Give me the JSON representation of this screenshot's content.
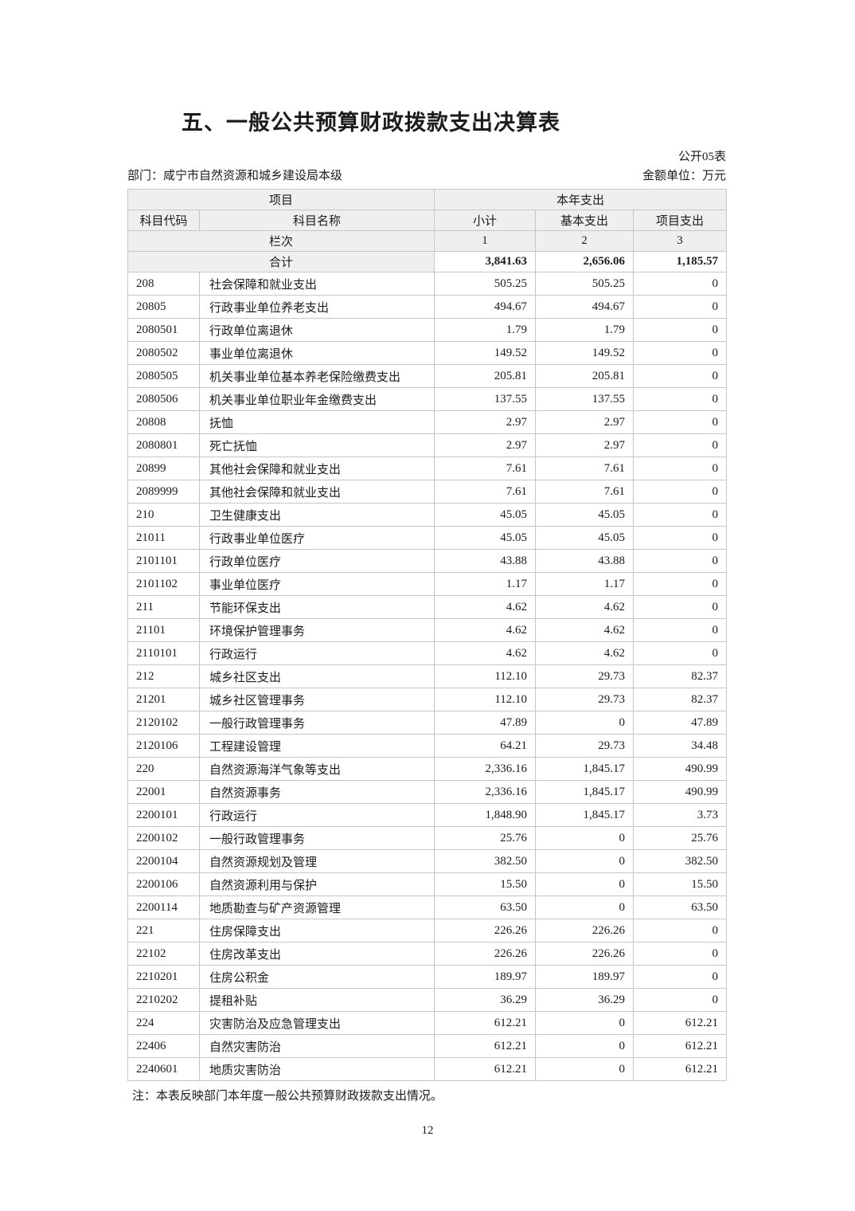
{
  "page": {
    "title": "五、一般公共预算财政拨款支出决算表",
    "form_code": "公开05表",
    "department_label": "部门：",
    "department": "咸宁市自然资源和城乡建设局本级",
    "unit_label": "金额单位：",
    "unit": "万元",
    "note": "注：本表反映部门本年度一般公共预算财政拨款支出情况。",
    "page_number": "12"
  },
  "colors": {
    "header_bg": "#efefef",
    "border": "#c6c6c6",
    "text": "#1c1c1c"
  },
  "table": {
    "header": {
      "group_left": "项目",
      "group_right": "本年支出",
      "col_code": "科目代码",
      "col_name": "科目名称",
      "col_subtotal": "小计",
      "col_basic": "基本支出",
      "col_project": "项目支出",
      "lane_label": "栏次",
      "lane_1": "1",
      "lane_2": "2",
      "lane_3": "3"
    },
    "total": {
      "label": "合计",
      "subtotal": "3,841.63",
      "basic": "2,656.06",
      "project": "1,185.57"
    },
    "rows": [
      [
        "208",
        "社会保障和就业支出",
        "505.25",
        "505.25",
        "0"
      ],
      [
        "20805",
        "行政事业单位养老支出",
        "494.67",
        "494.67",
        "0"
      ],
      [
        "2080501",
        "行政单位离退休",
        "1.79",
        "1.79",
        "0"
      ],
      [
        "2080502",
        "事业单位离退休",
        "149.52",
        "149.52",
        "0"
      ],
      [
        "2080505",
        "机关事业单位基本养老保险缴费支出",
        "205.81",
        "205.81",
        "0"
      ],
      [
        "2080506",
        "机关事业单位职业年金缴费支出",
        "137.55",
        "137.55",
        "0"
      ],
      [
        "20808",
        "抚恤",
        "2.97",
        "2.97",
        "0"
      ],
      [
        "2080801",
        "死亡抚恤",
        "2.97",
        "2.97",
        "0"
      ],
      [
        "20899",
        "其他社会保障和就业支出",
        "7.61",
        "7.61",
        "0"
      ],
      [
        "2089999",
        "其他社会保障和就业支出",
        "7.61",
        "7.61",
        "0"
      ],
      [
        "210",
        "卫生健康支出",
        "45.05",
        "45.05",
        "0"
      ],
      [
        "21011",
        "行政事业单位医疗",
        "45.05",
        "45.05",
        "0"
      ],
      [
        "2101101",
        "行政单位医疗",
        "43.88",
        "43.88",
        "0"
      ],
      [
        "2101102",
        "事业单位医疗",
        "1.17",
        "1.17",
        "0"
      ],
      [
        "211",
        "节能环保支出",
        "4.62",
        "4.62",
        "0"
      ],
      [
        "21101",
        "环境保护管理事务",
        "4.62",
        "4.62",
        "0"
      ],
      [
        "2110101",
        "行政运行",
        "4.62",
        "4.62",
        "0"
      ],
      [
        "212",
        "城乡社区支出",
        "112.10",
        "29.73",
        "82.37"
      ],
      [
        "21201",
        "城乡社区管理事务",
        "112.10",
        "29.73",
        "82.37"
      ],
      [
        "2120102",
        "一般行政管理事务",
        "47.89",
        "0",
        "47.89"
      ],
      [
        "2120106",
        "工程建设管理",
        "64.21",
        "29.73",
        "34.48"
      ],
      [
        "220",
        "自然资源海洋气象等支出",
        "2,336.16",
        "1,845.17",
        "490.99"
      ],
      [
        "22001",
        "自然资源事务",
        "2,336.16",
        "1,845.17",
        "490.99"
      ],
      [
        "2200101",
        "行政运行",
        "1,848.90",
        "1,845.17",
        "3.73"
      ],
      [
        "2200102",
        "一般行政管理事务",
        "25.76",
        "0",
        "25.76"
      ],
      [
        "2200104",
        "自然资源规划及管理",
        "382.50",
        "0",
        "382.50"
      ],
      [
        "2200106",
        "自然资源利用与保护",
        "15.50",
        "0",
        "15.50"
      ],
      [
        "2200114",
        "地质勘查与矿产资源管理",
        "63.50",
        "0",
        "63.50"
      ],
      [
        "221",
        "住房保障支出",
        "226.26",
        "226.26",
        "0"
      ],
      [
        "22102",
        "住房改革支出",
        "226.26",
        "226.26",
        "0"
      ],
      [
        "2210201",
        "住房公积金",
        "189.97",
        "189.97",
        "0"
      ],
      [
        "2210202",
        "提租补贴",
        "36.29",
        "36.29",
        "0"
      ],
      [
        "224",
        "灾害防治及应急管理支出",
        "612.21",
        "0",
        "612.21"
      ],
      [
        "22406",
        "自然灾害防治",
        "612.21",
        "0",
        "612.21"
      ],
      [
        "2240601",
        "地质灾害防治",
        "612.21",
        "0",
        "612.21"
      ]
    ]
  }
}
